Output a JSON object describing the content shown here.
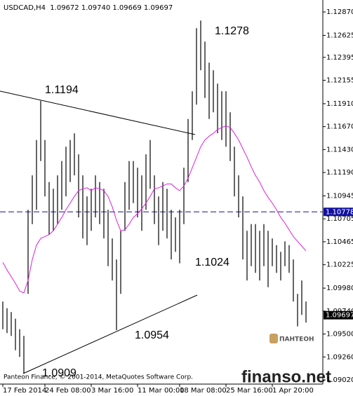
{
  "chart_data": {
    "type": "bar",
    "title": "USDCAD,H4  1.09672 1.09740 1.09669 1.09697",
    "ylim": [
      1.08976,
      1.12995
    ],
    "yticks": [
      {
        "value": 1.1287,
        "label": "1.12870"
      },
      1.12625,
      1.12395,
      1.12155,
      {
        "value": 1.1191,
        "label": "1.11910"
      },
      {
        "value": 1.1167,
        "label": "1.11670"
      },
      {
        "value": 1.1143,
        "label": "1.11430"
      },
      {
        "value": 1.1119,
        "label": "1.11190"
      },
      1.10945,
      1.10705,
      1.10465,
      1.10225,
      {
        "value": 1.0998,
        "label": "1.09980"
      },
      {
        "value": 1.0974,
        "label": "1.09740"
      },
      {
        "value": 1.095,
        "label": "1.09500"
      },
      {
        "value": 1.0926,
        "label": "1.09260"
      },
      {
        "value": 1.0902,
        "label": "1.09020"
      }
    ],
    "categories": [
      "17 Feb 2014",
      null,
      null,
      null,
      null,
      null,
      null,
      null,
      null,
      null,
      "24 Feb 08:00",
      null,
      null,
      null,
      null,
      null,
      null,
      null,
      null,
      null,
      null,
      "3 Mar 16:00",
      null,
      null,
      null,
      null,
      null,
      null,
      null,
      null,
      null,
      null,
      "11 Mar 00:00",
      null,
      null,
      null,
      null,
      null,
      null,
      null,
      null,
      null,
      "18 Mar 08:00",
      null,
      null,
      null,
      null,
      null,
      null,
      null,
      null,
      null,
      null,
      "25 Mar 16:00",
      null,
      null,
      null,
      null,
      null,
      null,
      null,
      null,
      null,
      null,
      "1 Apr 20:00",
      null,
      null,
      null,
      null,
      null,
      null,
      null,
      null
    ],
    "high": [
      1.0984,
      1.0977,
      1.0973,
      1.0966,
      1.0955,
      1.0948,
      1.108,
      1.1116,
      1.1153,
      1.1194,
      1.1153,
      1.1109,
      1.1102,
      1.1116,
      1.1131,
      1.1146,
      1.1153,
      1.116,
      1.1138,
      1.1116,
      1.1094,
      1.1102,
      1.1116,
      1.1109,
      1.1102,
      1.108,
      1.105,
      1.1028,
      1.1058,
      1.1109,
      1.1131,
      1.1131,
      1.1124,
      1.1116,
      1.1138,
      1.1153,
      1.1116,
      1.1094,
      1.1109,
      1.1102,
      1.108,
      1.1072,
      1.108,
      1.1124,
      1.1175,
      1.1204,
      1.127,
      1.1278,
      1.1256,
      1.1234,
      1.1226,
      1.1212,
      1.1204,
      1.1204,
      1.1182,
      1.1146,
      1.1116,
      1.1094,
      1.1058,
      1.1065,
      1.1065,
      1.1058,
      1.1065,
      1.1058,
      1.105,
      1.1043,
      1.1036,
      1.1047,
      1.1043,
      1.1028,
      1.0992,
      1.1006,
      1.0984
    ],
    "low": [
      1.0955,
      1.0951,
      1.0948,
      1.0933,
      1.0926,
      1.0909,
      1.0992,
      1.1065,
      1.108,
      1.1131,
      1.1094,
      1.1054,
      1.1058,
      1.1065,
      1.108,
      1.1094,
      1.1109,
      1.1116,
      1.1072,
      1.105,
      1.1043,
      1.1058,
      1.1072,
      1.1065,
      1.105,
      1.1021,
      1.1006,
      1.0954,
      1.0992,
      1.1058,
      1.108,
      1.1087,
      1.1072,
      1.1058,
      1.108,
      1.1102,
      1.1065,
      1.1043,
      1.1058,
      1.105,
      1.1028,
      1.1036,
      1.1024,
      1.1065,
      1.1109,
      1.1153,
      1.119,
      1.1226,
      1.1197,
      1.1175,
      1.1182,
      1.116,
      1.1153,
      1.1146,
      1.1131,
      1.1094,
      1.1072,
      1.1028,
      1.1006,
      1.1021,
      1.1014,
      1.1006,
      1.1021,
      1.0999,
      1.1021,
      1.1014,
      1.1006,
      1.1021,
      1.1014,
      1.0984,
      1.0958,
      1.097,
      1.0962
    ],
    "bar_color": "#000000",
    "ma": [
      1.1025,
      1.1017,
      1.101,
      1.1003,
      1.0995,
      1.0993,
      1.1006,
      1.1028,
      1.1043,
      1.105,
      1.1052,
      1.1054,
      1.1058,
      1.1065,
      1.1072,
      1.108,
      1.1087,
      1.1094,
      1.11,
      1.1102,
      1.1103,
      1.11,
      1.1103,
      1.1102,
      1.11,
      1.1094,
      1.1083,
      1.1069,
      1.1058,
      1.1059,
      1.1065,
      1.1072,
      1.1076,
      1.1081,
      1.1087,
      1.1094,
      1.1102,
      1.1103,
      1.1105,
      1.1107,
      1.1107,
      1.1103,
      1.11,
      1.1105,
      1.1113,
      1.1124,
      1.1135,
      1.1146,
      1.1153,
      1.1157,
      1.116,
      1.1164,
      1.1166,
      1.1168,
      1.1166,
      1.116,
      1.1153,
      1.1144,
      1.1135,
      1.1125,
      1.1116,
      1.1109,
      1.11,
      1.1093,
      1.1087,
      1.108,
      1.1072,
      1.1066,
      1.1059,
      1.1052,
      1.1047,
      1.1042,
      1.1037
    ],
    "ma_color": "#e020e0",
    "level_line": {
      "value": 1.10778,
      "label": "1.10778",
      "color": "#1010a0"
    },
    "last_price": {
      "value": 1.09697,
      "label": "1.09697",
      "color": "#000000"
    },
    "annotations": [
      "1.1194",
      "1.1278",
      "1.1024",
      "1.0954",
      "1.0909"
    ],
    "copyright": "Panteon Finance, © 2001-2014, MetaQuotes Software Corp.",
    "logo": "ПАНТЕОН",
    "watermark": "finanso.net"
  }
}
